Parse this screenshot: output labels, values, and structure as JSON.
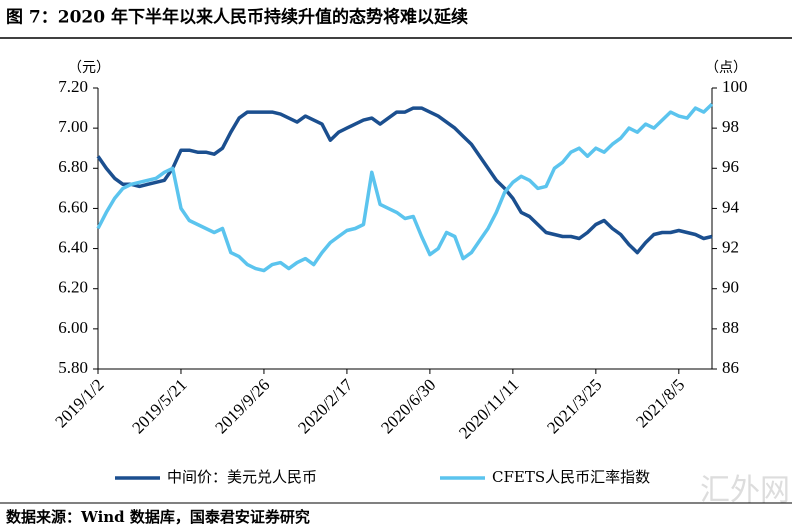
{
  "chart_data": {
    "type": "line",
    "title": "图 7：2020 年下半年以来人民币持续升值的态势将难以延续",
    "y_unit": "（元）",
    "y2_unit": "（点）",
    "source": "数据来源：Wind 数据库，国泰君安证券研究",
    "watermark": "汇外网",
    "categories": [
      "2019/1/2",
      null,
      null,
      null,
      null,
      null,
      null,
      null,
      null,
      null,
      "2019/5/21",
      null,
      null,
      null,
      null,
      null,
      null,
      null,
      null,
      null,
      "2019/9/26",
      null,
      null,
      null,
      null,
      null,
      null,
      null,
      null,
      null,
      "2020/2/17",
      null,
      null,
      null,
      null,
      null,
      null,
      null,
      null,
      null,
      "2020/6/30",
      null,
      null,
      null,
      null,
      null,
      null,
      null,
      null,
      null,
      "2020/11/11",
      null,
      null,
      null,
      null,
      null,
      null,
      null,
      null,
      null,
      "2021/3/25",
      null,
      null,
      null,
      null,
      null,
      null,
      null,
      null,
      null,
      "2021/8/5",
      null,
      null,
      null,
      null
    ],
    "ylim": [
      5.8,
      7.2
    ],
    "yticks": [
      {
        "value": 5.8,
        "label": "5.80"
      },
      {
        "value": 6.0,
        "label": "6.00"
      },
      {
        "value": 6.2,
        "label": "6.20"
      },
      {
        "value": 6.4,
        "label": "6.40"
      },
      {
        "value": 6.6,
        "label": "6.60"
      },
      {
        "value": 6.8,
        "label": "6.80"
      },
      {
        "value": 7.0,
        "label": "7.00"
      },
      {
        "value": 7.2,
        "label": "7.20"
      }
    ],
    "y2lim": [
      86,
      100
    ],
    "y2ticks": [
      86,
      88,
      90,
      92,
      94,
      96,
      98,
      100
    ],
    "legend": "bottom",
    "series": [
      {
        "name": "中间价：美元兑人民币",
        "color": "#1b4f8f",
        "values": [
          6.86,
          6.8,
          6.75,
          6.72,
          6.72,
          6.71,
          6.72,
          6.73,
          6.74,
          6.8,
          6.89,
          6.89,
          6.88,
          6.88,
          6.87,
          6.9,
          6.98,
          7.05,
          7.08,
          7.08,
          7.08,
          7.08,
          7.07,
          7.05,
          7.03,
          7.06,
          7.04,
          7.02,
          6.94,
          6.98,
          7.0,
          7.02,
          7.04,
          7.05,
          7.02,
          7.05,
          7.08,
          7.08,
          7.1,
          7.1,
          7.08,
          7.06,
          7.03,
          7.0,
          6.96,
          6.92,
          6.86,
          6.8,
          6.74,
          6.7,
          6.65,
          6.58,
          6.56,
          6.52,
          6.48,
          6.47,
          6.46,
          6.46,
          6.45,
          6.48,
          6.52,
          6.54,
          6.5,
          6.47,
          6.42,
          6.38,
          6.43,
          6.47,
          6.48,
          6.48,
          6.49,
          6.48,
          6.47,
          6.45,
          6.46
        ]
      },
      {
        "name": "CFETS人民币汇率指数",
        "color": "#5bc4ee",
        "axis": "y2",
        "values": [
          93.0,
          93.8,
          94.5,
          95.0,
          95.2,
          95.3,
          95.4,
          95.5,
          95.8,
          96.0,
          94.0,
          93.4,
          93.2,
          93.0,
          92.8,
          93.0,
          91.8,
          91.6,
          91.2,
          91.0,
          90.9,
          91.2,
          91.3,
          91.0,
          91.3,
          91.5,
          91.2,
          91.8,
          92.3,
          92.6,
          92.9,
          93.0,
          93.2,
          95.8,
          94.2,
          94.0,
          93.8,
          93.5,
          93.6,
          92.6,
          91.7,
          92.0,
          92.8,
          92.6,
          91.5,
          91.8,
          92.4,
          93.0,
          93.8,
          94.8,
          95.3,
          95.6,
          95.4,
          95.0,
          95.1,
          96.0,
          96.3,
          96.8,
          97.0,
          96.6,
          97.0,
          96.8,
          97.2,
          97.5,
          98.0,
          97.8,
          98.2,
          98.0,
          98.4,
          98.8,
          98.6,
          98.5,
          99.0,
          98.8,
          99.2
        ]
      }
    ]
  }
}
